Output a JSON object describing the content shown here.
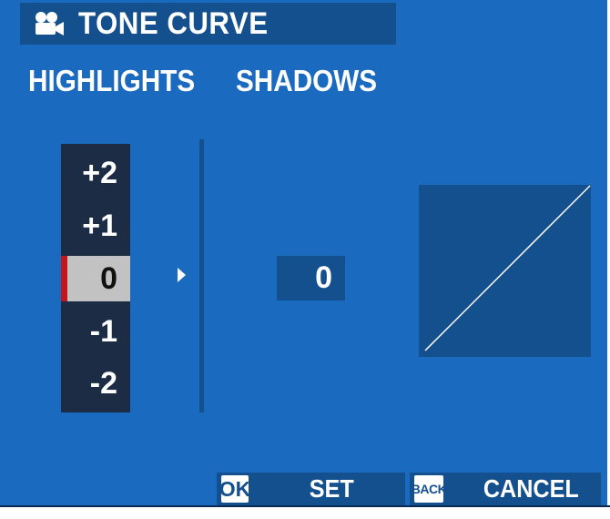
{
  "header": {
    "title": "TONE CURVE",
    "icon": "movie-camera-icon"
  },
  "columns": {
    "highlights_label": "HIGHLIGHTS",
    "shadows_label": "SHADOWS"
  },
  "highlights": {
    "options": [
      "+2",
      "+1",
      "0",
      "-1",
      "-2"
    ],
    "selected_index": 2,
    "selected_value": "0"
  },
  "shadows": {
    "value": "0"
  },
  "curve": {
    "type": "linear"
  },
  "footer": {
    "set_key": "OK",
    "set_label": "SET",
    "cancel_key": "BACK",
    "cancel_label": "CANCEL"
  },
  "colors": {
    "background": "#1a6bc0",
    "panel": "#14508d",
    "scale_bg": "#1c2c44",
    "selected": "#c2c2c2",
    "marker": "#c0161c"
  }
}
